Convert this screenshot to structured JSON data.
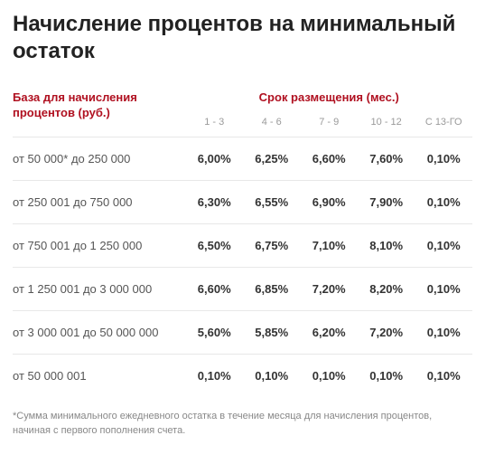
{
  "title": "Начисление процентов на минимальный остаток",
  "table": {
    "type": "table",
    "header_color": "#b01020",
    "subhead_color": "#9a9a9a",
    "border_color": "#e8e8e8",
    "range_text_color": "#555555",
    "rate_text_color": "#333333",
    "base_header": "База для начисления процентов (руб.)",
    "placement_header": "Срок размещения (мес.)",
    "periods": [
      "1 - 3",
      "4 - 6",
      "7 - 9",
      "10 - 12",
      "С 13-ГО"
    ],
    "rows": [
      {
        "range": "от 50 000* до 250 000",
        "rates": [
          "6,00%",
          "6,25%",
          "6,60%",
          "7,60%",
          "0,10%"
        ]
      },
      {
        "range": "от 250 001 до 750 000",
        "rates": [
          "6,30%",
          "6,55%",
          "6,90%",
          "7,90%",
          "0,10%"
        ]
      },
      {
        "range": "от 750 001 до 1 250 000",
        "rates": [
          "6,50%",
          "6,75%",
          "7,10%",
          "8,10%",
          "0,10%"
        ]
      },
      {
        "range": "от 1 250 001 до 3 000 000",
        "rates": [
          "6,60%",
          "6,85%",
          "7,20%",
          "8,20%",
          "0,10%"
        ]
      },
      {
        "range": "от 3 000 001 до 50 000 000",
        "rates": [
          "5,60%",
          "5,85%",
          "6,20%",
          "7,20%",
          "0,10%"
        ]
      },
      {
        "range": "от 50 000 001",
        "rates": [
          "0,10%",
          "0,10%",
          "0,10%",
          "0,10%",
          "0,10%"
        ]
      }
    ]
  },
  "footnote": "*Сумма минимального ежедневного остатка в течение месяца для начисления процентов, начиная с первого пополнения счета."
}
